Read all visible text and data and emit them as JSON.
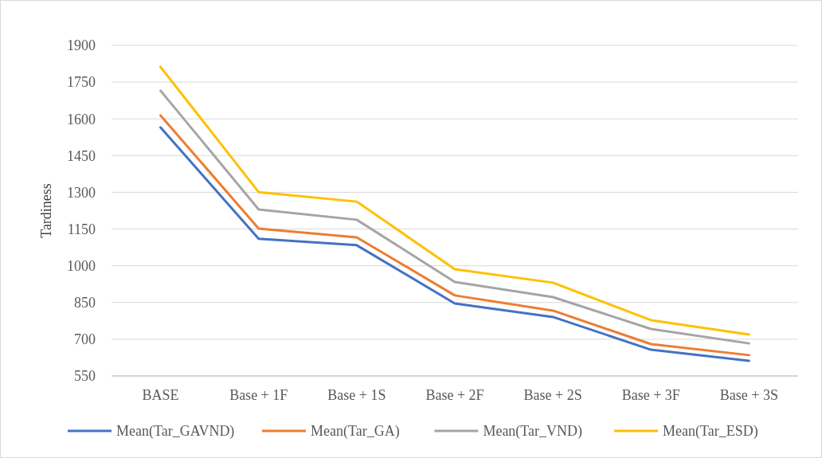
{
  "chart_data": {
    "type": "line",
    "ylabel": "Tardiness",
    "categories": [
      "BASE",
      "Base + 1F",
      "Base + 1S",
      "Base + 2F",
      "Base + 2S",
      "Base + 3F",
      "Base + 3S"
    ],
    "series": [
      {
        "name": "Mean(Tar_GAVND)",
        "color": "#4472c4",
        "values": [
          1565,
          1110,
          1084,
          846,
          791,
          657,
          612
        ]
      },
      {
        "name": "Mean(Tar_GA)",
        "color": "#ed7d31",
        "values": [
          1614,
          1152,
          1116,
          879,
          817,
          680,
          635
        ]
      },
      {
        "name": "Mean(Tar_VND)",
        "color": "#a5a5a5",
        "values": [
          1715,
          1230,
          1188,
          934,
          872,
          742,
          683
        ]
      },
      {
        "name": "Mean(Tar_ESD)",
        "color": "#ffc000",
        "values": [
          1812,
          1301,
          1262,
          986,
          931,
          778,
          719
        ]
      }
    ],
    "ylim": [
      550,
      1900
    ],
    "yticks": [
      550,
      700,
      850,
      1000,
      1150,
      1300,
      1450,
      1600,
      1750,
      1900
    ],
    "grid": "y",
    "legend": "bottom",
    "marker": "none",
    "line_style": "solid"
  }
}
